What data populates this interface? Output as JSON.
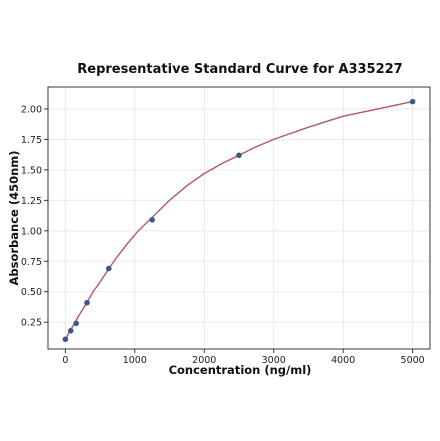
{
  "chart_data": {
    "type": "scatter",
    "title": "Representative Standard Curve for A335227",
    "xlabel": "Concentration (ng/ml)",
    "ylabel": "Absorbance (450nm)",
    "xlim": [
      -250,
      5250
    ],
    "ylim": [
      0.03,
      2.18
    ],
    "x_ticks": [
      0,
      1000,
      2000,
      3000,
      4000,
      5000
    ],
    "y_ticks": [
      0.25,
      0.5,
      0.75,
      1.0,
      1.25,
      1.5,
      1.75,
      2.0
    ],
    "x_tick_labels": [
      "0",
      "1000",
      "2000",
      "3000",
      "4000",
      "5000"
    ],
    "y_tick_labels": [
      "0.25",
      "0.50",
      "0.75",
      "1.00",
      "1.25",
      "1.50",
      "1.75",
      "2.00"
    ],
    "grid": true,
    "series": [
      {
        "type": "scatter",
        "x": [
          0,
          78,
          156,
          312,
          625,
          1250,
          2500,
          5000
        ],
        "y": [
          0.11,
          0.18,
          0.24,
          0.41,
          0.69,
          1.09,
          1.62,
          2.06
        ]
      },
      {
        "type": "line",
        "fit": "four-parameter logistic",
        "x": [
          0,
          50,
          100,
          150,
          200,
          300,
          400,
          500,
          625,
          750,
          900,
          1050,
          1250,
          1500,
          1750,
          2000,
          2250,
          2500,
          2750,
          3000,
          3500,
          4000,
          4500,
          5000
        ],
        "y": [
          0.11,
          0.16,
          0.21,
          0.26,
          0.31,
          0.4,
          0.5,
          0.58,
          0.69,
          0.79,
          0.9,
          1.0,
          1.11,
          1.25,
          1.37,
          1.47,
          1.55,
          1.62,
          1.69,
          1.75,
          1.85,
          1.94,
          2.0,
          2.06
        ]
      }
    ],
    "colors": {
      "points": "#3b5a8a",
      "curve": "#b5566b"
    }
  }
}
